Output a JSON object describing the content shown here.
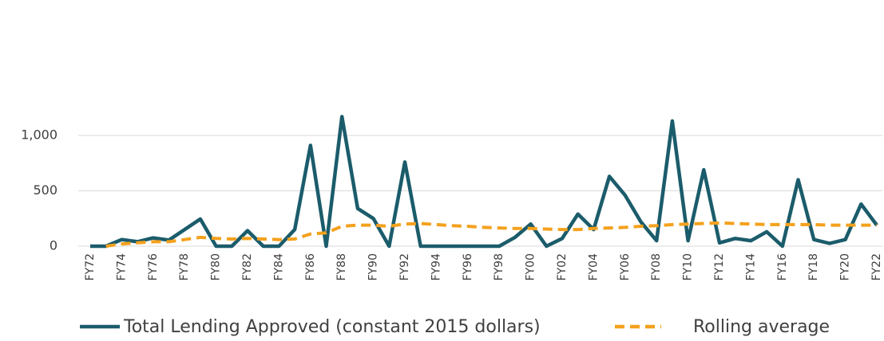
{
  "chart_data": {
    "type": "line",
    "categories": [
      "FY72",
      null,
      "FY74",
      null,
      "FY76",
      null,
      "FY78",
      null,
      "FY80",
      null,
      "FY82",
      null,
      "FY84",
      null,
      "FY86",
      null,
      "FY88",
      null,
      "FY90",
      null,
      "FY92",
      null,
      "FY94",
      null,
      "FY96",
      null,
      "FY98",
      null,
      "FY00",
      null,
      "FY02",
      null,
      "FY04",
      null,
      "FY06",
      null,
      "FY08",
      null,
      "FY10",
      null,
      "FY12",
      null,
      "FY14",
      null,
      "FY16",
      null,
      "FY18",
      null,
      "FY20",
      null,
      "FY22"
    ],
    "series": [
      {
        "name": "Total Lending Approved (constant 2015 dollars)",
        "color": "#1b5c6b",
        "dashed": false,
        "values": [
          0,
          0,
          60,
          40,
          75,
          55,
          150,
          245,
          0,
          0,
          140,
          0,
          0,
          150,
          910,
          0,
          1170,
          340,
          250,
          0,
          760,
          0,
          0,
          0,
          0,
          0,
          0,
          80,
          200,
          0,
          70,
          290,
          150,
          630,
          460,
          220,
          50,
          1130,
          50,
          690,
          30,
          70,
          50,
          130,
          0,
          600,
          60,
          25,
          60,
          380,
          190
        ]
      },
      {
        "name": "Rolling average",
        "color": "#f4a11d",
        "dashed": true,
        "values": [
          null,
          0,
          20,
          30,
          40,
          40,
          60,
          80,
          70,
          65,
          70,
          65,
          60,
          65,
          110,
          120,
          180,
          190,
          190,
          180,
          200,
          205,
          195,
          185,
          180,
          170,
          165,
          160,
          160,
          155,
          150,
          150,
          160,
          165,
          170,
          180,
          185,
          195,
          200,
          205,
          210,
          205,
          200,
          195,
          195,
          195,
          195,
          190,
          190,
          190,
          190
        ]
      }
    ],
    "ylim": [
      0,
      1500
    ],
    "yticks": [
      0,
      500,
      {
        "value": 1000,
        "label": "1,000"
      }
    ],
    "grid": true
  }
}
